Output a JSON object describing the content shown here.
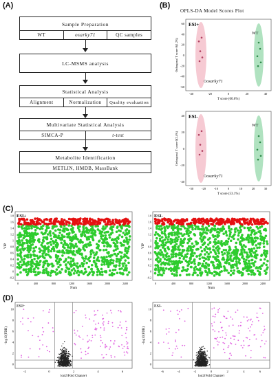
{
  "panels": {
    "A": "(A)",
    "B": "(B)",
    "C": "(C)",
    "D": "(D)"
  },
  "flow": {
    "sample_prep": {
      "title": "Sample Preparation",
      "items": [
        "WT",
        "osarky71",
        "QC samples"
      ]
    },
    "lcms": {
      "title": "LC-MSMS analysis"
    },
    "stat": {
      "title": "Statistical Analysis",
      "items": [
        "Alignment",
        "Normalization",
        "Quality evaluation"
      ]
    },
    "multi": {
      "title": "Multivariate Statistical Analysis",
      "items": [
        "SIMCA-P",
        "t-test"
      ]
    },
    "meta": {
      "title": "Metabolite Identification",
      "items": [
        "METLIN, HMDB, MassBank"
      ]
    }
  },
  "opls": {
    "title": "OPLS-DA Model Scores Plot",
    "plots": [
      {
        "label": "ESI+",
        "ylabel": "Orthogonal T score 0(1.2%)",
        "xlabel": "T score (60.6%)",
        "group_wt": "WT",
        "group_mut": "osarky71",
        "yticks": [
          "60",
          "40",
          "20",
          "0",
          "-20",
          "-40",
          "-60"
        ],
        "xticks": [
          "-40",
          "-20",
          "0",
          "20",
          "40"
        ]
      },
      {
        "label": "ESI-",
        "ylabel": "Orthogonal T score 0(2.4%)",
        "xlabel": "T score (53.1%)",
        "group_wt": "WT",
        "group_mut": "osarky71",
        "yticks": [
          "40",
          "20",
          "0",
          "-20",
          "-40"
        ],
        "xticks": [
          "-30",
          "-20",
          "-10",
          "0",
          "10",
          "20",
          "30"
        ]
      }
    ]
  },
  "vip": [
    {
      "label": "ESI+",
      "ylabel": "VIP",
      "xlabel": "Num",
      "yticks": [
        "1.8",
        "1.6",
        "1.4",
        "1.2",
        "1",
        "0.8",
        "0.6",
        "0.4",
        "0.2",
        "0",
        "-0.2"
      ],
      "xticks": [
        "0",
        "400",
        "800",
        "1200",
        "1600",
        "2000",
        "2400"
      ]
    },
    {
      "label": "ESI-",
      "ylabel": "VIP",
      "xlabel": "Num",
      "yticks": [
        "1.8",
        "1.6",
        "1.4",
        "1.2",
        "1",
        "0.8",
        "0.6",
        "0.4",
        "0.2",
        "0",
        "-0.2"
      ],
      "xticks": [
        "0",
        "400",
        "800",
        "1200",
        "1600",
        "2000",
        "2400"
      ]
    }
  ],
  "volcano": [
    {
      "label": "ESI+",
      "ylabel": "-log10(FDR)",
      "xlabel": "log2(Fold Change)",
      "yticks": [
        "10",
        "8",
        "6",
        "4",
        "2",
        "0"
      ],
      "xticks": [
        "-2",
        "0",
        "2",
        "4",
        "6"
      ]
    },
    {
      "label": "ESI-",
      "ylabel": "-log10(FDR)",
      "xlabel": "log2(Fold Change)",
      "yticks": [
        "10",
        "8",
        "6",
        "4",
        "2",
        "0"
      ],
      "xticks": [
        "-6",
        "-4",
        "-2",
        "0",
        "2",
        "4",
        "6"
      ]
    }
  ],
  "colors": {
    "wt": "#8fd6a5",
    "mut": "#f2b3c0",
    "red": "#e51010",
    "green": "#2ecc2e",
    "magenta": "#e060e0"
  }
}
